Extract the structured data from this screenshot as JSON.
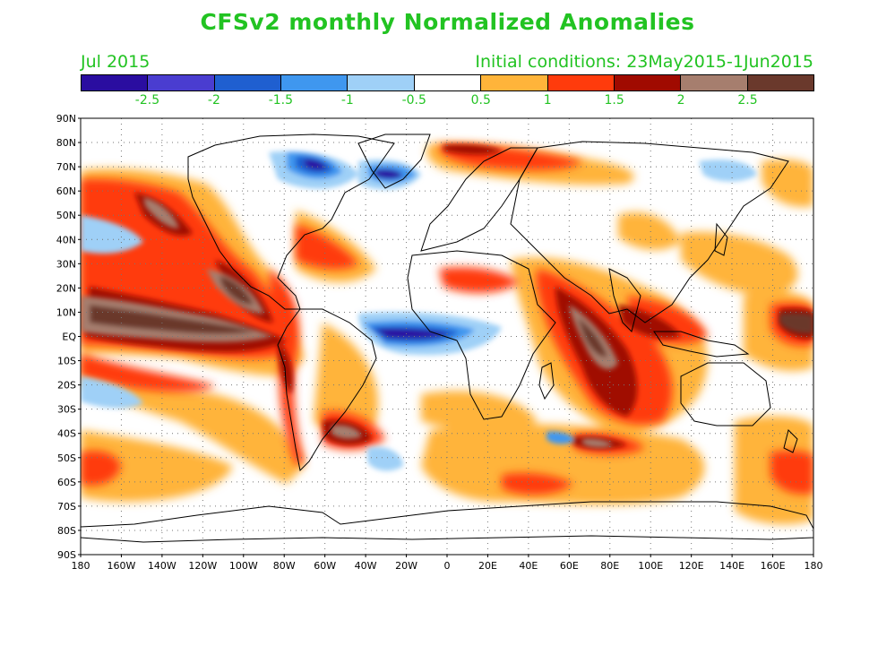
{
  "title": "CFSv2 monthly Normalized Anomalies",
  "subtitle_left": "Jul 2015",
  "subtitle_right": "Initial conditions: 23May2015-1Jun2015",
  "legend": {
    "colors": [
      "#2a0da0",
      "#4a3dd0",
      "#1f5fd0",
      "#3f97ef",
      "#9fd0f7",
      "#ffffff",
      "#ffb43a",
      "#ff3b0c",
      "#a00a00",
      "#a67e6e",
      "#6a392c"
    ],
    "labels": [
      "-2.5",
      "-2",
      "-1.5",
      "-1",
      "-0.5",
      "0.5",
      "1",
      "1.5",
      "2",
      "2.5"
    ]
  },
  "axes": {
    "y_labels": [
      "90N",
      "80N",
      "70N",
      "60N",
      "50N",
      "40N",
      "30N",
      "20N",
      "10N",
      "EQ",
      "10S",
      "20S",
      "30S",
      "40S",
      "50S",
      "60S",
      "70S",
      "80S",
      "90S"
    ],
    "x_labels": [
      "180",
      "160W",
      "140W",
      "120W",
      "100W",
      "80W",
      "60W",
      "40W",
      "20W",
      "0",
      "20E",
      "40E",
      "60E",
      "80E",
      "100E",
      "120E",
      "140E",
      "160E",
      "180"
    ]
  },
  "map_data": {
    "lon_range": [
      -180,
      180
    ],
    "lat_range": [
      -90,
      90
    ],
    "grid": true,
    "anomaly_regions": [
      {
        "lon": -145,
        "lat": 5,
        "rx": 40,
        "ry": 10,
        "level": 10
      },
      {
        "lon": -108,
        "lat": 18,
        "rx": 25,
        "ry": 14,
        "level": 9
      },
      {
        "lon": -112,
        "lat": 30,
        "rx": 15,
        "ry": 10,
        "level": 9
      },
      {
        "lon": -140,
        "lat": 50,
        "rx": 12,
        "ry": 8,
        "level": 9
      },
      {
        "lon": -82,
        "lat": -10,
        "rx": 5,
        "ry": 12,
        "level": 9
      },
      {
        "lon": -50,
        "lat": -38,
        "rx": 10,
        "ry": 5,
        "level": 9
      },
      {
        "lon": 62,
        "lat": -15,
        "rx": 15,
        "ry": 14,
        "level": 9
      },
      {
        "lon": 80,
        "lat": 5,
        "rx": 12,
        "ry": 8,
        "level": 9
      },
      {
        "lon": 105,
        "lat": 2,
        "rx": 12,
        "ry": 6,
        "level": 8
      },
      {
        "lon": 175,
        "lat": 5,
        "rx": 10,
        "ry": 8,
        "level": 9
      },
      {
        "lon": 70,
        "lat": -42,
        "rx": 10,
        "ry": 4,
        "level": 9
      },
      {
        "lon": -20,
        "lat": -2,
        "rx": 22,
        "ry": 5,
        "level": 0
      },
      {
        "lon": -58,
        "lat": 68,
        "rx": 10,
        "ry": 5,
        "level": 1
      },
      {
        "lon": -30,
        "lat": 72,
        "rx": 12,
        "ry": 4,
        "level": 1
      },
      {
        "lon": 160,
        "lat": -60,
        "rx": 20,
        "ry": 6,
        "level": 8
      },
      {
        "lon": -175,
        "lat": -55,
        "rx": 6,
        "ry": 6,
        "level": 8
      }
    ]
  }
}
